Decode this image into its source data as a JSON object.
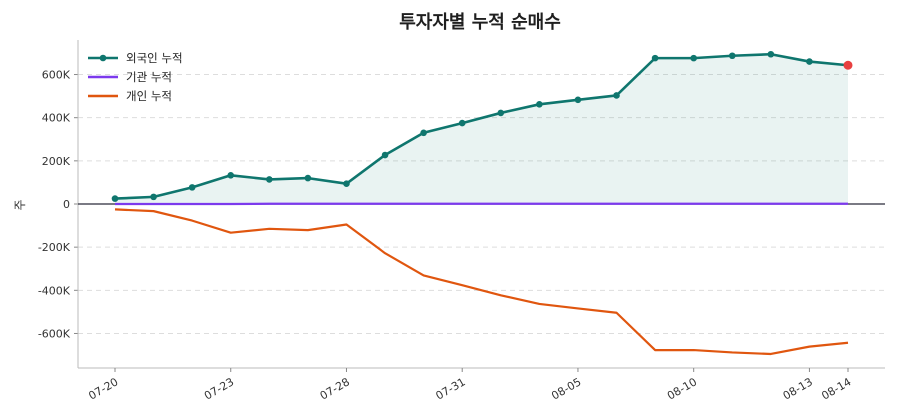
{
  "chart_data": {
    "type": "line",
    "title": "투자자별 누적 순매수",
    "ylabel": "주",
    "xlabel": "",
    "ylim": [
      -760000,
      760000
    ],
    "yticks": [
      -600000,
      -400000,
      -200000,
      0,
      200000,
      400000,
      600000
    ],
    "ytick_labels": [
      "-600K",
      "-400K",
      "-200K",
      "0",
      "200K",
      "400K",
      "600K"
    ],
    "x": [
      "07-20",
      "07-21",
      "07-22",
      "07-23",
      "07-24",
      "07-27",
      "07-28",
      "07-29",
      "07-30",
      "07-31",
      "08-03",
      "08-04",
      "08-05",
      "08-06",
      "08-07",
      "08-10",
      "08-11",
      "08-12",
      "08-13",
      "08-14"
    ],
    "xtick_labels": [
      "07-20",
      "07-23",
      "07-28",
      "07-31",
      "08-05",
      "08-10",
      "08-13",
      "08-14"
    ],
    "grid": "y",
    "legend_position": "top-left",
    "series": [
      {
        "name": "외국인 누적",
        "color": "#0f766e",
        "marker": true,
        "fill": true,
        "values": [
          25000,
          33000,
          77000,
          133000,
          114000,
          120000,
          94000,
          227000,
          330000,
          375000,
          422000,
          462000,
          483000,
          503000,
          676000,
          676000,
          687000,
          694000,
          660000,
          643000
        ]
      },
      {
        "name": "기관 누적",
        "color": "#7c3aed",
        "marker": false,
        "fill": false,
        "values": [
          0,
          0,
          0,
          0,
          1000,
          1000,
          1000,
          1000,
          1000,
          1000,
          1000,
          1000,
          1000,
          1000,
          1000,
          1000,
          1000,
          1000,
          1000,
          1000
        ]
      },
      {
        "name": "개인 누적",
        "color": "#e0560f",
        "marker": false,
        "fill": false,
        "values": [
          -25000,
          -33000,
          -77000,
          -133000,
          -115000,
          -121000,
          -95000,
          -228000,
          -331000,
          -376000,
          -423000,
          -463000,
          -484000,
          -504000,
          -677000,
          -677000,
          -688000,
          -695000,
          -661000,
          -643000
        ]
      }
    ],
    "highlight_color": "#e84040"
  }
}
